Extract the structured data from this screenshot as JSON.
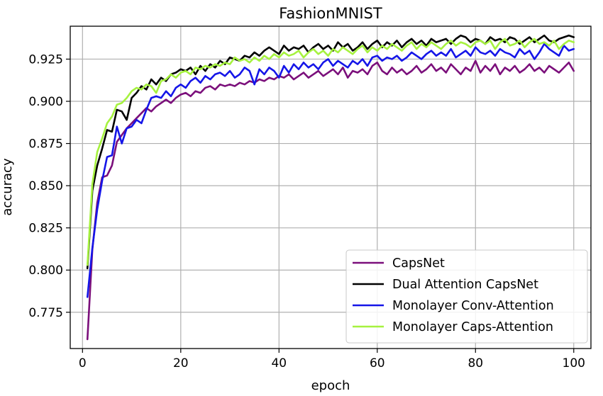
{
  "chart_data": {
    "type": "line",
    "title": "FashionMNIST",
    "xlabel": "epoch",
    "ylabel": "accuracy",
    "xlim": [
      -2.5,
      103.5
    ],
    "ylim": [
      0.7535,
      0.9445
    ],
    "xticks": [
      0,
      20,
      40,
      60,
      80,
      100
    ],
    "yticks": [
      0.775,
      0.8,
      0.825,
      0.85,
      0.875,
      0.9,
      0.925
    ],
    "ytick_labels": [
      "0.775",
      "0.800",
      "0.825",
      "0.850",
      "0.875",
      "0.900",
      "0.925"
    ],
    "grid": true,
    "legend_position": "lower-right",
    "x": [
      1,
      2,
      3,
      4,
      5,
      6,
      7,
      8,
      9,
      10,
      11,
      12,
      13,
      14,
      15,
      16,
      17,
      18,
      19,
      20,
      21,
      22,
      23,
      24,
      25,
      26,
      27,
      28,
      29,
      30,
      31,
      32,
      33,
      34,
      35,
      36,
      37,
      38,
      39,
      40,
      41,
      42,
      43,
      44,
      45,
      46,
      47,
      48,
      49,
      50,
      51,
      52,
      53,
      54,
      55,
      56,
      57,
      58,
      59,
      60,
      61,
      62,
      63,
      64,
      65,
      66,
      67,
      68,
      69,
      70,
      71,
      72,
      73,
      74,
      75,
      76,
      77,
      78,
      79,
      80,
      81,
      82,
      83,
      84,
      85,
      86,
      87,
      88,
      89,
      90,
      91,
      92,
      93,
      94,
      95,
      96,
      97,
      98,
      99,
      100
    ],
    "series": [
      {
        "name": "CapsNet",
        "color": "#7b0f7b",
        "values": [
          0.759,
          0.812,
          0.84,
          0.855,
          0.856,
          0.862,
          0.876,
          0.88,
          0.884,
          0.887,
          0.89,
          0.893,
          0.896,
          0.894,
          0.897,
          0.899,
          0.901,
          0.899,
          0.902,
          0.904,
          0.905,
          0.903,
          0.906,
          0.905,
          0.908,
          0.909,
          0.907,
          0.91,
          0.909,
          0.91,
          0.909,
          0.911,
          0.91,
          0.912,
          0.911,
          0.913,
          0.912,
          0.914,
          0.913,
          0.915,
          0.914,
          0.916,
          0.913,
          0.915,
          0.917,
          0.914,
          0.916,
          0.918,
          0.915,
          0.917,
          0.919,
          0.916,
          0.92,
          0.914,
          0.918,
          0.917,
          0.919,
          0.916,
          0.921,
          0.923,
          0.918,
          0.916,
          0.92,
          0.917,
          0.919,
          0.916,
          0.918,
          0.921,
          0.917,
          0.919,
          0.922,
          0.918,
          0.92,
          0.917,
          0.922,
          0.919,
          0.916,
          0.92,
          0.918,
          0.924,
          0.917,
          0.921,
          0.918,
          0.922,
          0.916,
          0.92,
          0.918,
          0.921,
          0.917,
          0.919,
          0.922,
          0.918,
          0.92,
          0.917,
          0.921,
          0.919,
          0.917,
          0.92,
          0.923,
          0.918
        ]
      },
      {
        "name": "Dual Attention CapsNet",
        "color": "#000000",
        "values": [
          0.801,
          0.847,
          0.862,
          0.872,
          0.883,
          0.882,
          0.895,
          0.894,
          0.889,
          0.902,
          0.905,
          0.909,
          0.907,
          0.913,
          0.91,
          0.914,
          0.912,
          0.916,
          0.917,
          0.919,
          0.918,
          0.92,
          0.916,
          0.921,
          0.918,
          0.922,
          0.92,
          0.924,
          0.922,
          0.926,
          0.925,
          0.924,
          0.927,
          0.926,
          0.929,
          0.927,
          0.93,
          0.932,
          0.93,
          0.928,
          0.933,
          0.93,
          0.932,
          0.931,
          0.933,
          0.929,
          0.932,
          0.934,
          0.931,
          0.933,
          0.93,
          0.935,
          0.932,
          0.934,
          0.93,
          0.932,
          0.935,
          0.931,
          0.934,
          0.936,
          0.932,
          0.935,
          0.933,
          0.936,
          0.932,
          0.935,
          0.937,
          0.934,
          0.936,
          0.933,
          0.937,
          0.935,
          0.936,
          0.937,
          0.934,
          0.937,
          0.939,
          0.938,
          0.935,
          0.937,
          0.936,
          0.934,
          0.938,
          0.936,
          0.937,
          0.935,
          0.938,
          0.937,
          0.934,
          0.936,
          0.938,
          0.935,
          0.937,
          0.939,
          0.936,
          0.935,
          0.937,
          0.938,
          0.939,
          0.938
        ]
      },
      {
        "name": "Monolayer Conv-Attention",
        "color": "#1515e8",
        "values": [
          0.784,
          0.813,
          0.836,
          0.853,
          0.867,
          0.868,
          0.885,
          0.875,
          0.884,
          0.885,
          0.889,
          0.887,
          0.895,
          0.902,
          0.903,
          0.902,
          0.906,
          0.903,
          0.908,
          0.91,
          0.908,
          0.912,
          0.914,
          0.911,
          0.915,
          0.913,
          0.916,
          0.917,
          0.915,
          0.918,
          0.914,
          0.916,
          0.92,
          0.918,
          0.91,
          0.919,
          0.916,
          0.92,
          0.918,
          0.914,
          0.921,
          0.917,
          0.922,
          0.919,
          0.923,
          0.92,
          0.922,
          0.919,
          0.923,
          0.925,
          0.921,
          0.924,
          0.922,
          0.92,
          0.924,
          0.922,
          0.925,
          0.921,
          0.926,
          0.927,
          0.924,
          0.926,
          0.925,
          0.927,
          0.924,
          0.926,
          0.929,
          0.927,
          0.925,
          0.928,
          0.93,
          0.927,
          0.929,
          0.927,
          0.931,
          0.926,
          0.928,
          0.93,
          0.927,
          0.932,
          0.929,
          0.928,
          0.93,
          0.927,
          0.931,
          0.929,
          0.928,
          0.926,
          0.931,
          0.928,
          0.93,
          0.925,
          0.929,
          0.934,
          0.931,
          0.929,
          0.927,
          0.933,
          0.93,
          0.931
        ]
      },
      {
        "name": "Monolayer Caps-Attention",
        "color": "#a6f23f",
        "values": [
          0.803,
          0.851,
          0.87,
          0.878,
          0.887,
          0.891,
          0.898,
          0.899,
          0.902,
          0.906,
          0.908,
          0.907,
          0.91,
          0.909,
          0.905,
          0.912,
          0.913,
          0.916,
          0.914,
          0.917,
          0.918,
          0.916,
          0.92,
          0.919,
          0.921,
          0.92,
          0.922,
          0.921,
          0.923,
          0.922,
          0.926,
          0.924,
          0.925,
          0.923,
          0.926,
          0.924,
          0.927,
          0.925,
          0.928,
          0.926,
          0.929,
          0.927,
          0.928,
          0.93,
          0.926,
          0.929,
          0.931,
          0.928,
          0.93,
          0.927,
          0.931,
          0.929,
          0.932,
          0.93,
          0.928,
          0.931,
          0.933,
          0.929,
          0.932,
          0.93,
          0.933,
          0.931,
          0.934,
          0.932,
          0.93,
          0.933,
          0.935,
          0.931,
          0.934,
          0.932,
          0.935,
          0.933,
          0.931,
          0.934,
          0.936,
          0.933,
          0.935,
          0.934,
          0.932,
          0.935,
          0.936,
          0.934,
          0.936,
          0.931,
          0.935,
          0.937,
          0.933,
          0.934,
          0.936,
          0.932,
          0.935,
          0.937,
          0.934,
          0.935,
          0.933,
          0.936,
          0.931,
          0.934,
          0.936,
          0.935
        ]
      }
    ]
  }
}
